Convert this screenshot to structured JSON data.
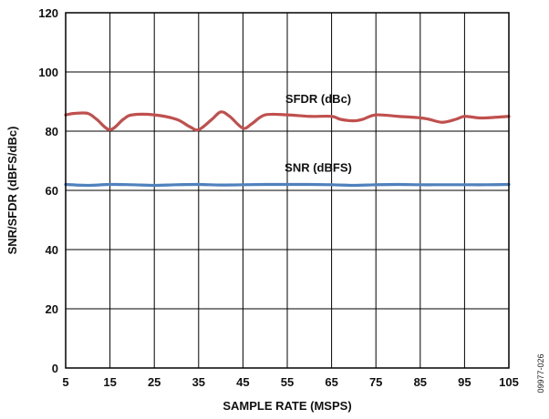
{
  "chart_data": {
    "type": "line",
    "title": "",
    "xlabel": "SAMPLE RATE (MSPS)",
    "ylabel": "SNR/SFDR (dBFS/dBc)",
    "xlim": [
      5,
      105
    ],
    "ylim": [
      0,
      120
    ],
    "x_ticks": [
      "5",
      "15",
      "25",
      "35",
      "45",
      "55",
      "65",
      "75",
      "85",
      "95",
      "105"
    ],
    "y_ticks": [
      "0",
      "20",
      "40",
      "60",
      "80",
      "100",
      "120"
    ],
    "grid": true,
    "series": [
      {
        "name": "SFDR (dBc)",
        "color": "#c0504d",
        "x": [
          5,
          7,
          10,
          12,
          15,
          18,
          20,
          25,
          30,
          33,
          35,
          38,
          40,
          42,
          45,
          47,
          50,
          55,
          60,
          65,
          67,
          70,
          72,
          75,
          80,
          85,
          87,
          90,
          93,
          95,
          98,
          100,
          105
        ],
        "y": [
          85.5,
          86,
          86,
          84,
          80.5,
          84,
          85.5,
          85.5,
          84,
          81.5,
          80.5,
          84,
          86.5,
          85,
          81,
          82.5,
          85.5,
          85.5,
          85,
          85,
          84,
          83.5,
          84,
          85.5,
          85,
          84.5,
          84,
          83,
          84,
          85,
          84.5,
          84.5,
          85
        ]
      },
      {
        "name": "SNR (dBFS)",
        "color": "#4f81bd",
        "x": [
          5,
          10,
          15,
          20,
          25,
          30,
          35,
          40,
          45,
          50,
          55,
          60,
          65,
          70,
          75,
          80,
          85,
          90,
          95,
          100,
          105
        ],
        "y": [
          62,
          61.7,
          62,
          61.9,
          61.7,
          61.9,
          62,
          61.8,
          61.9,
          62,
          62,
          62,
          61.9,
          61.7,
          61.9,
          62,
          61.9,
          61.9,
          61.9,
          61.9,
          62
        ]
      }
    ],
    "figure_id": "09977-026"
  }
}
